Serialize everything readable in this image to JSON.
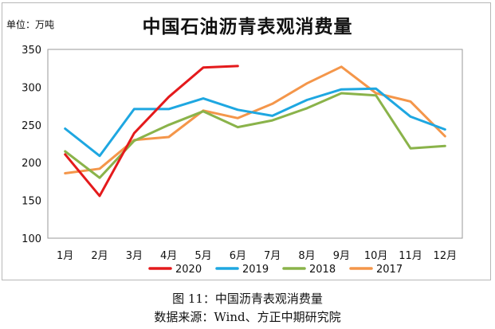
{
  "chart_data": {
    "type": "line",
    "title": "中国石油沥青表观消费量",
    "unit_label": "单位：万吨",
    "xlabel": "",
    "ylabel": "",
    "categories": [
      "1月",
      "2月",
      "3月",
      "4月",
      "5月",
      "6月",
      "7月",
      "8月",
      "9月",
      "10月",
      "11月",
      "12月"
    ],
    "ylim": [
      100,
      350
    ],
    "yticks": [
      100,
      150,
      200,
      250,
      300,
      350
    ],
    "grid": false,
    "legend_position": "bottom",
    "series": [
      {
        "name": "2020",
        "color": "#e41a1c",
        "values": [
          211,
          156,
          239,
          287,
          326,
          328,
          null,
          null,
          null,
          null,
          null,
          null
        ]
      },
      {
        "name": "2019",
        "color": "#1ea7e1",
        "values": [
          245,
          209,
          271,
          271,
          285,
          270,
          262,
          283,
          297,
          298,
          261,
          244
        ]
      },
      {
        "name": "2018",
        "color": "#8ab34a",
        "values": [
          215,
          180,
          229,
          250,
          268,
          247,
          256,
          272,
          292,
          289,
          219,
          222
        ]
      },
      {
        "name": "2017",
        "color": "#f4964a",
        "values": [
          186,
          192,
          230,
          234,
          269,
          259,
          278,
          305,
          327,
          292,
          281,
          235
        ]
      }
    ]
  },
  "caption": {
    "figure": "图 11：中国沥青表观消费量",
    "source": "数据来源：Wind、方正中期研究院"
  }
}
